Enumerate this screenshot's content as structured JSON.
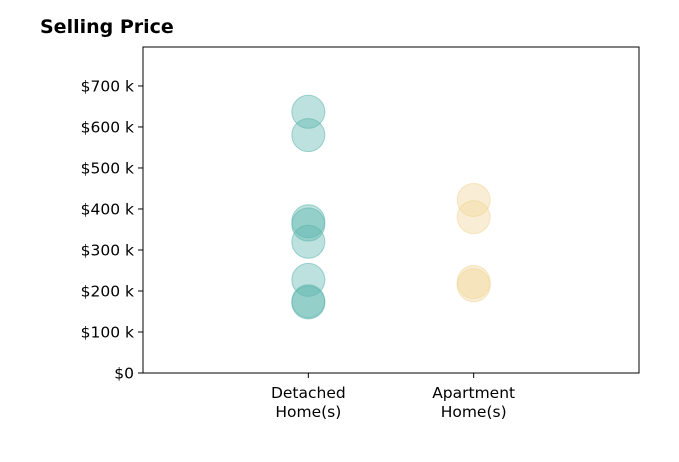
{
  "chart_data": {
    "type": "scatter",
    "title": "Selling Price",
    "xlabel": "",
    "ylabel": "",
    "categories": [
      "Detached\nHome(s)",
      "Apartment\nHome(s)"
    ],
    "yticks": [
      {
        "value": 0,
        "label": "$0"
      },
      {
        "value": 100,
        "label": "$100 k"
      },
      {
        "value": 200,
        "label": "$200 k"
      },
      {
        "value": 300,
        "label": "$300 k"
      },
      {
        "value": 400,
        "label": "$400 k"
      },
      {
        "value": 500,
        "label": "$500 k"
      },
      {
        "value": 600,
        "label": "$600 k"
      },
      {
        "value": 700,
        "label": "$700 k"
      }
    ],
    "ylim": [
      0,
      795
    ],
    "xlim": [
      -1,
      2
    ],
    "grid": false,
    "series": [
      {
        "category": 0,
        "color": "#5ab4ac",
        "values": [
          637,
          580,
          370,
          362,
          320,
          227,
          175,
          172
        ]
      },
      {
        "category": 1,
        "color": "#f1d596",
        "values": [
          422,
          380,
          222,
          214
        ]
      }
    ]
  }
}
